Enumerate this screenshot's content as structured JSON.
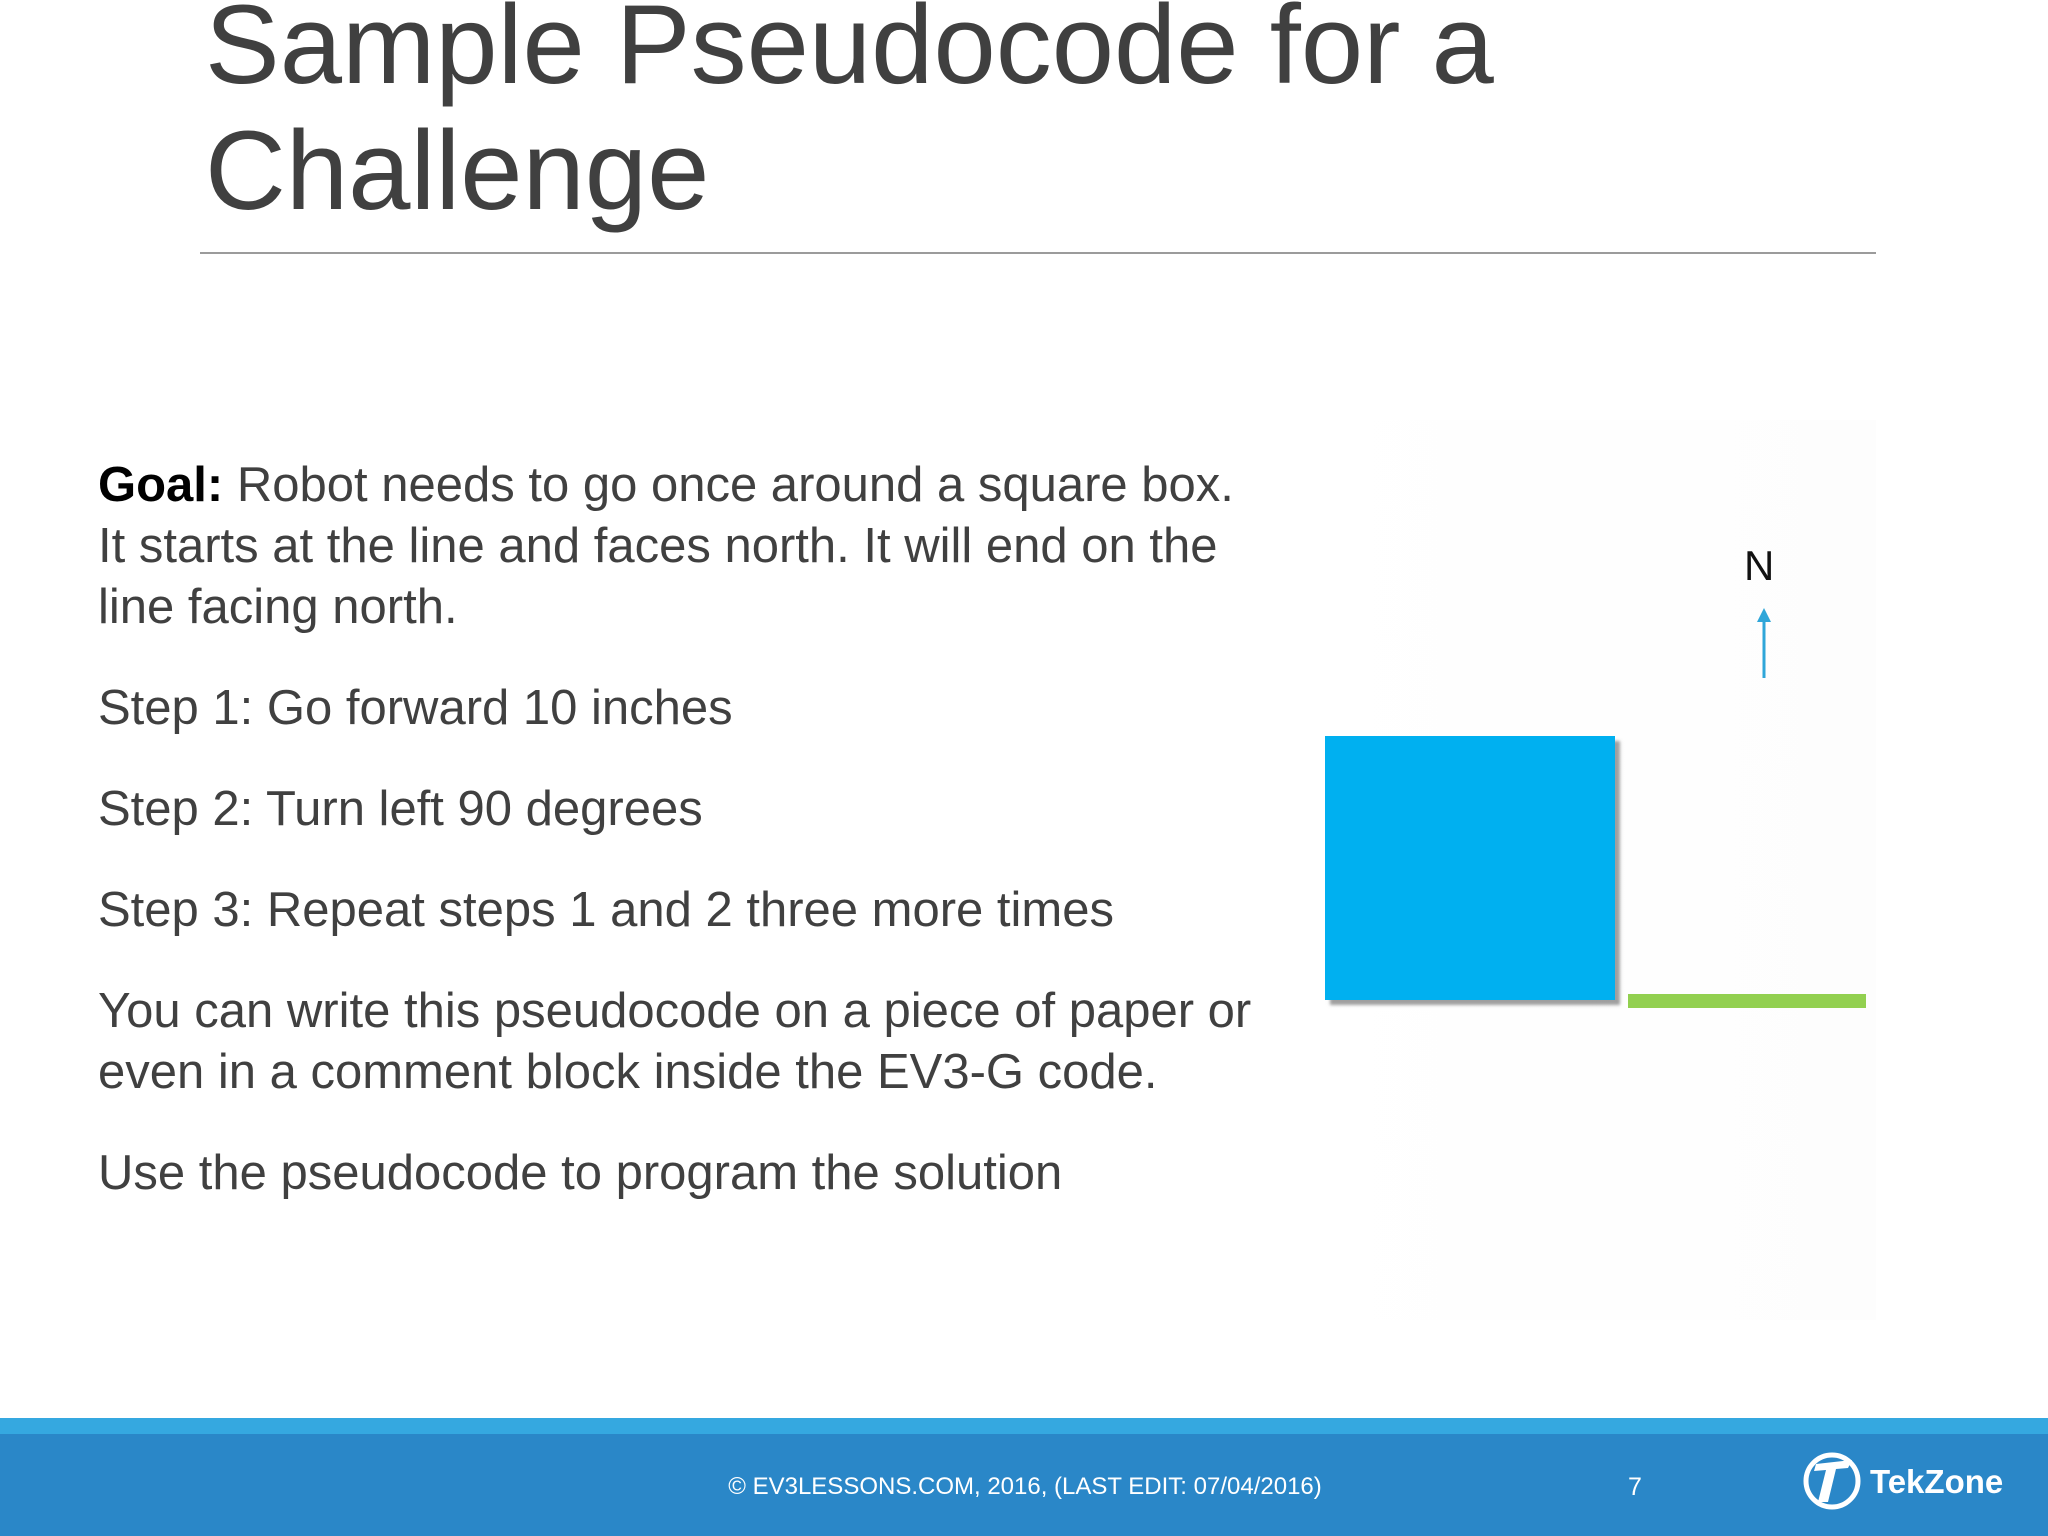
{
  "slide": {
    "title": "Sample Pseudocode for a Challenge",
    "goal_label": "Goal:",
    "goal_text": "Robot needs to go once around a square box. It starts at the line and faces north. It will end on the line facing north.",
    "steps": [
      "Step 1: Go forward 10 inches",
      "Step 2: Turn left 90 degrees",
      "Step 3: Repeat steps 1 and 2 three more times"
    ],
    "note": "You can write this pseudocode on a piece of paper or even in a comment block inside the EV3-G code.",
    "closing": "Use the pseudocode to program the solution"
  },
  "figure": {
    "compass_label": "N",
    "box_color": "#00b0f0",
    "line_color": "#92d050",
    "arrow_color": "#2fa6d9"
  },
  "footer": {
    "copyright": "© EV3LESSONS.COM, 2016, (LAST EDIT: 07/04/2016)",
    "page_number": "7",
    "logo_text": "TekZone",
    "band_color": "#2a87c8"
  }
}
